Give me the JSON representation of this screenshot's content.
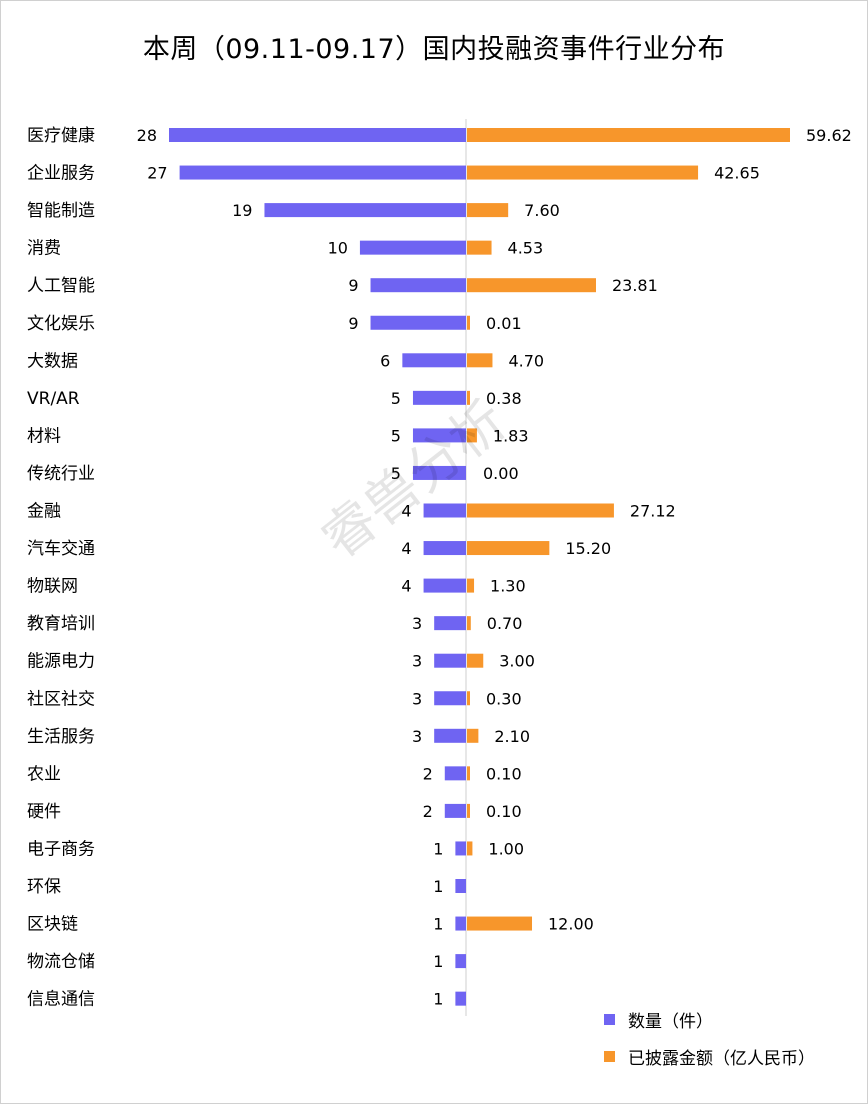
{
  "chart_data": {
    "type": "bar",
    "title": "本周（09.11-09.17）国内投融资事件行业分布",
    "categories": [
      "医疗健康",
      "企业服务",
      "智能制造",
      "消费",
      "人工智能",
      "文化娱乐",
      "大数据",
      "VR/AR",
      "材料",
      "传统行业",
      "金融",
      "汽车交通",
      "物联网",
      "教育培训",
      "能源电力",
      "社区社交",
      "生活服务",
      "农业",
      "硬件",
      "电子商务",
      "环保",
      "区块链",
      "物流仓储",
      "信息通信"
    ],
    "series": [
      {
        "name": "数量（件）",
        "color": "#6f64f2",
        "direction": "left",
        "values": [
          28,
          27,
          19,
          10,
          9,
          9,
          6,
          5,
          5,
          5,
          4,
          4,
          4,
          3,
          3,
          3,
          3,
          2,
          2,
          1,
          1,
          1,
          1,
          1
        ],
        "labels": [
          "28",
          "27",
          "19",
          "10",
          "9",
          "9",
          "6",
          "5",
          "5",
          "5",
          "4",
          "4",
          "4",
          "3",
          "3",
          "3",
          "3",
          "2",
          "2",
          "1",
          "1",
          "1",
          "1",
          "1"
        ]
      },
      {
        "name": "已披露金额（亿人民币）",
        "color": "#f7962b",
        "direction": "right",
        "values": [
          59.62,
          42.65,
          7.6,
          4.53,
          23.81,
          0.01,
          4.7,
          0.38,
          1.83,
          0.0,
          27.12,
          15.2,
          1.3,
          0.7,
          3.0,
          0.3,
          2.1,
          0.1,
          0.1,
          1.0,
          null,
          12.0,
          null,
          null
        ],
        "labels": [
          "59.62",
          "42.65",
          "7.60",
          "4.53",
          "23.81",
          "0.01",
          "4.70",
          "0.38",
          "1.83",
          "0.00",
          "27.12",
          "15.20",
          "1.30",
          "0.70",
          "3.00",
          "0.30",
          "2.10",
          "0.10",
          "0.10",
          "1.00",
          "",
          "12.00",
          "",
          ""
        ]
      }
    ],
    "legend_position": "bottom-right",
    "grid": false
  },
  "watermark": "睿兽分析"
}
